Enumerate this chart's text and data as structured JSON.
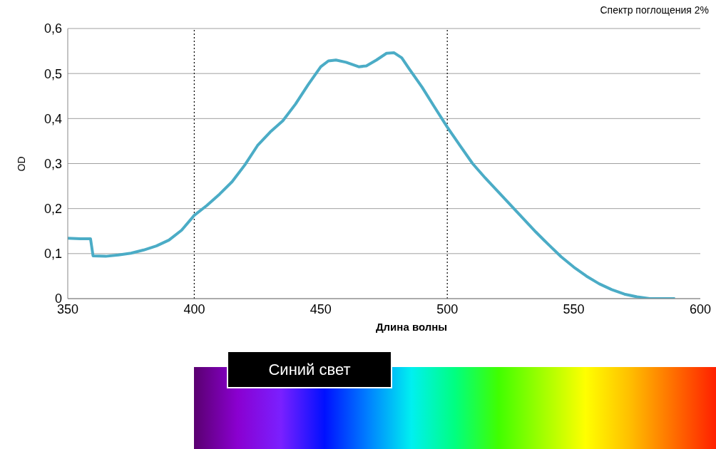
{
  "chart_data": {
    "type": "line",
    "title": "Спектр поглощения 2%",
    "xlabel": "Длина волны",
    "ylabel": "OD",
    "x": [
      350,
      355,
      359,
      360,
      365,
      370,
      375,
      380,
      385,
      390,
      395,
      400,
      405,
      410,
      415,
      420,
      425,
      430,
      435,
      440,
      445,
      450,
      453,
      456,
      460,
      465,
      468,
      472,
      476,
      479,
      482,
      485,
      490,
      495,
      500,
      505,
      510,
      515,
      520,
      525,
      530,
      535,
      540,
      545,
      550,
      555,
      560,
      565,
      570,
      575,
      580,
      585,
      590
    ],
    "series": [
      {
        "color": "#4bacc6",
        "values": [
          0.134,
          0.133,
          0.133,
          0.095,
          0.094,
          0.097,
          0.101,
          0.108,
          0.117,
          0.13,
          0.152,
          0.185,
          0.207,
          0.232,
          0.26,
          0.297,
          0.34,
          0.37,
          0.395,
          0.432,
          0.475,
          0.515,
          0.528,
          0.53,
          0.525,
          0.515,
          0.517,
          0.53,
          0.545,
          0.546,
          0.535,
          0.51,
          0.47,
          0.425,
          0.381,
          0.34,
          0.3,
          0.268,
          0.238,
          0.208,
          0.178,
          0.148,
          0.12,
          0.093,
          0.07,
          0.05,
          0.033,
          0.02,
          0.01,
          0.004,
          0,
          0,
          0
        ]
      }
    ],
    "xlim": [
      350,
      600
    ],
    "xticks": [
      350,
      400,
      450,
      500,
      550,
      600
    ],
    "ylim": [
      0,
      0.6
    ],
    "yticks": [
      {
        "value": 0,
        "label": "0"
      },
      {
        "value": 0.1,
        "label": "0,1"
      },
      {
        "value": 0.2,
        "label": "0,2"
      },
      {
        "value": 0.3,
        "label": "0,3"
      },
      {
        "value": 0.4,
        "label": "0,4"
      },
      {
        "value": 0.5,
        "label": "0,5"
      },
      {
        "value": 0.6,
        "label": "0,6"
      }
    ],
    "grid": "y",
    "marker": "none",
    "line_style": "solid",
    "ref_lines": [
      {
        "axis": "x",
        "value": 400,
        "color": "#000000",
        "line_style": "dotted"
      },
      {
        "axis": "x",
        "value": 500,
        "color": "#000000",
        "line_style": "dotted"
      }
    ],
    "annotations": [
      "Синий свет"
    ]
  }
}
